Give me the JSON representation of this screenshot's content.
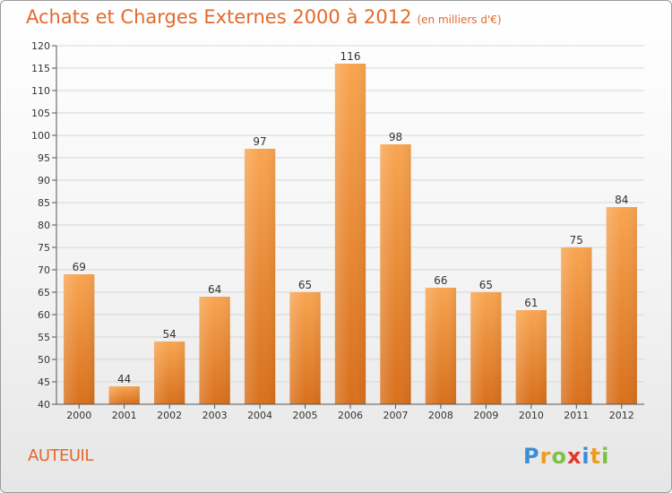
{
  "header": {
    "title": "Achats et Charges Externes 2000 à 2012",
    "subtitle": "(en milliers d'€)"
  },
  "footer": {
    "city": "AUTEUIL",
    "logo_text": "Proxiti"
  },
  "colors": {
    "accent": "#e26a2c",
    "bar_top": "#f8a551",
    "bar_bottom": "#d8701c",
    "grid": "#d6d6d6"
  },
  "chart_data": {
    "type": "bar",
    "title": "Achats et Charges Externes 2000 à 2012",
    "subtitle": "(en milliers d'€)",
    "xlabel": "",
    "ylabel": "",
    "categories": [
      "2000",
      "2001",
      "2002",
      "2003",
      "2004",
      "2005",
      "2006",
      "2007",
      "2008",
      "2009",
      "2010",
      "2011",
      "2012"
    ],
    "values": [
      69,
      44,
      54,
      64,
      97,
      65,
      116,
      98,
      66,
      65,
      61,
      75,
      84
    ],
    "ylim": [
      40,
      120
    ],
    "yticks": [
      40,
      45,
      50,
      55,
      60,
      65,
      70,
      75,
      80,
      85,
      90,
      95,
      100,
      105,
      110,
      115,
      120
    ],
    "grid": true,
    "legend": "none"
  }
}
